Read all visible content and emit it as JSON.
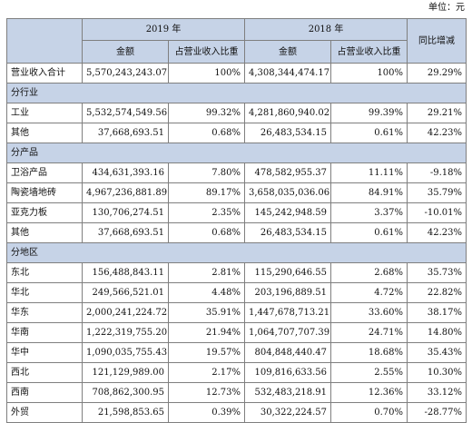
{
  "unit": "单位：元",
  "header": {
    "year1": "2019 年",
    "year2": "2018 年",
    "change": "同比增减",
    "amount": "金额",
    "ratio": "占营业收入比重"
  },
  "total": {
    "label": "营业收入合计",
    "a19": "5,570,243,243.07",
    "r19": "100%",
    "a18": "4,308,344,474.17",
    "r18": "100%",
    "chg": "29.29%"
  },
  "sections": [
    {
      "title": "分行业",
      "rows": [
        {
          "label": "工业",
          "a19": "5,532,574,549.56",
          "r19": "99.32%",
          "a18": "4,281,860,940.02",
          "r18": "99.39%",
          "chg": "29.21%"
        },
        {
          "label": "其他",
          "a19": "37,668,693.51",
          "r19": "0.68%",
          "a18": "26,483,534.15",
          "r18": "0.61%",
          "chg": "42.23%"
        }
      ]
    },
    {
      "title": "分产品",
      "rows": [
        {
          "label": "卫浴产品",
          "a19": "434,631,393.16",
          "r19": "7.80%",
          "a18": "478,582,955.37",
          "r18": "11.11%",
          "chg": "-9.18%"
        },
        {
          "label": "陶瓷墙地砖",
          "a19": "4,967,236,881.89",
          "r19": "89.17%",
          "a18": "3,658,035,036.06",
          "r18": "84.91%",
          "chg": "35.79%"
        },
        {
          "label": "亚克力板",
          "a19": "130,706,274.51",
          "r19": "2.35%",
          "a18": "145,242,948.59",
          "r18": "3.37%",
          "chg": "-10.01%"
        },
        {
          "label": "其他",
          "a19": "37,668,693.51",
          "r19": "0.68%",
          "a18": "26,483,534.15",
          "r18": "0.61%",
          "chg": "42.23%"
        }
      ]
    },
    {
      "title": "分地区",
      "rows": [
        {
          "label": "东北",
          "a19": "156,488,843.11",
          "r19": "2.81%",
          "a18": "115,290,646.55",
          "r18": "2.68%",
          "chg": "35.73%"
        },
        {
          "label": "华北",
          "a19": "249,566,521.01",
          "r19": "4.48%",
          "a18": "203,196,889.51",
          "r18": "4.72%",
          "chg": "22.82%"
        },
        {
          "label": "华东",
          "a19": "2,000,241,224.72",
          "r19": "35.91%",
          "a18": "1,447,678,713.21",
          "r18": "33.60%",
          "chg": "38.17%"
        },
        {
          "label": "华南",
          "a19": "1,222,319,755.20",
          "r19": "21.94%",
          "a18": "1,064,707,707.39",
          "r18": "24.71%",
          "chg": "14.80%"
        },
        {
          "label": "华中",
          "a19": "1,090,035,755.43",
          "r19": "19.57%",
          "a18": "804,848,440.47",
          "r18": "18.68%",
          "chg": "35.43%"
        },
        {
          "label": "西北",
          "a19": "121,129,989.00",
          "r19": "2.17%",
          "a18": "109,816,633.56",
          "r18": "2.55%",
          "chg": "10.30%"
        },
        {
          "label": "西南",
          "a19": "708,862,300.95",
          "r19": "12.73%",
          "a18": "532,483,218.91",
          "r18": "12.36%",
          "chg": "33.12%"
        },
        {
          "label": "外贸",
          "a19": "21,598,853.65",
          "r19": "0.39%",
          "a18": "30,322,224.57",
          "r18": "0.70%",
          "chg": "-28.77%"
        }
      ]
    }
  ]
}
